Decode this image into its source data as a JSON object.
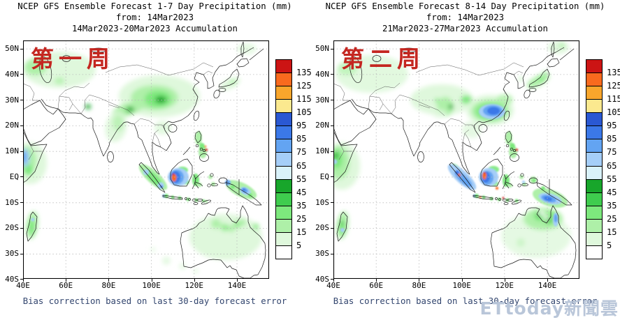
{
  "panels": [
    {
      "title_line1": "NCEP GFS Ensemble Forecast 1-7 Day Precipitation (mm)",
      "title_line2": "from: 14Mar2023",
      "title_line3": "14Mar2023-20Mar2023 Accumulation",
      "annotation": "第一周",
      "caption": "Bias correction based on last 30-day forecast error"
    },
    {
      "title_line1": "NCEP GFS Ensemble Forecast 8-14 Day Precipitation (mm)",
      "title_line2": "from: 14Mar2023",
      "title_line3": "21Mar2023-27Mar2023 Accumulation",
      "annotation": "第二周",
      "caption": "Bias correction based on last 30-day forecast error"
    }
  ],
  "axes": {
    "lat_ticks": [
      "50N",
      "40N",
      "30N",
      "20N",
      "10N",
      "EQ",
      "10S",
      "20S",
      "30S",
      "40S"
    ],
    "lon_ticks": [
      "40E",
      "60E",
      "80E",
      "100E",
      "120E",
      "140E"
    ]
  },
  "colorbar": {
    "labels": [
      "135",
      "125",
      "115",
      "105",
      "95",
      "85",
      "75",
      "65",
      "55",
      "45",
      "35",
      "25",
      "15",
      "5"
    ],
    "colors_top_to_bottom": [
      "#CC1414",
      "#F96A1E",
      "#F9A62C",
      "#FBE98F",
      "#2A58D2",
      "#3B78E8",
      "#63A4F2",
      "#A5CEF8",
      "#D9F2FA",
      "#18A62B",
      "#3FCC4E",
      "#7DE87D",
      "#AEF0A8",
      "#DFF8DC",
      "#FFFFFF"
    ]
  },
  "annotation_color": "#C42620",
  "caption_color": "#32456E",
  "watermark": "ETtoday新聞雲",
  "watermark_color": "#B6C4D8",
  "chart_data": [
    {
      "type": "heatmap",
      "panel": "week1 (1-7 day accumulation, 14Mar2023-20Mar2023)",
      "units": "mm",
      "lon_range": [
        "40E",
        "155E"
      ],
      "lat_range": [
        "40S",
        "53N"
      ],
      "levels": [
        5,
        15,
        25,
        35,
        45,
        55,
        65,
        75,
        85,
        95,
        105,
        115,
        125,
        135
      ],
      "features": [
        {
          "area": "Central Asia / Caspian region",
          "max_mm": 35
        },
        {
          "area": "Central-east China (Sichuan-Yangtze)",
          "max_mm": 55
        },
        {
          "area": "Himalayas / NE India",
          "max_mm": 45
        },
        {
          "area": "East India coast",
          "max_mm": 25
        },
        {
          "area": "Horn of Africa coast",
          "max_mm": 85
        },
        {
          "area": "Borneo (orange/red core)",
          "max_mm": 135
        },
        {
          "area": "Sumatra",
          "max_mm": 85
        },
        {
          "area": "Philippines (small red spot)",
          "max_mm": 135
        },
        {
          "area": "New Guinea",
          "max_mm": 85
        },
        {
          "area": "Northern Australia",
          "max_mm": 35
        },
        {
          "area": "Madagascar",
          "max_mm": 55
        },
        {
          "area": "Japan",
          "max_mm": 25
        }
      ]
    },
    {
      "type": "heatmap",
      "panel": "week2 (8-14 day accumulation, 21Mar2023-27Mar2023)",
      "units": "mm",
      "lon_range": [
        "40E",
        "155E"
      ],
      "lat_range": [
        "40S",
        "53N"
      ],
      "levels": [
        5,
        15,
        25,
        35,
        45,
        55,
        65,
        75,
        85,
        95,
        105,
        115,
        125,
        135
      ],
      "features": [
        {
          "area": "South China blue blob (Guangxi-Guangdong)",
          "max_mm": 95
        },
        {
          "area": "Tibet / SW China spots",
          "max_mm": 45
        },
        {
          "area": "Japan islands band",
          "max_mm": 35
        },
        {
          "area": "Horn of Africa",
          "max_mm": 65
        },
        {
          "area": "Borneo (orange core)",
          "max_mm": 125
        },
        {
          "area": "Sumatra (blue band)",
          "max_mm": 105
        },
        {
          "area": "Philippines (small red spot)",
          "max_mm": 135
        },
        {
          "area": "New Guinea (blue core)",
          "max_mm": 95
        },
        {
          "area": "Northern Australia / Cape York (blue strip)",
          "max_mm": 85
        },
        {
          "area": "Madagascar",
          "max_mm": 55
        }
      ]
    }
  ]
}
